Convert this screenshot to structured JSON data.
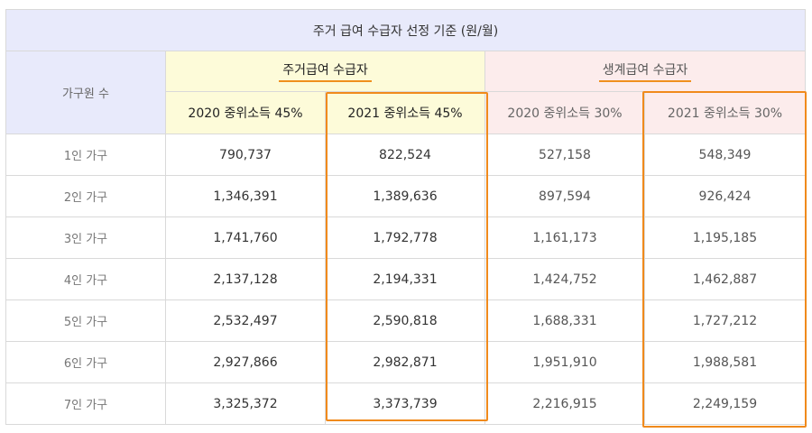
{
  "table": {
    "title": "주거 급여 수급자 선정 기준 (원/월)",
    "row_header": "가구원 수",
    "groups": [
      {
        "label": "주거급여 수급자",
        "subheaders": [
          "2020 중위소득 45%",
          "2021 중위소득 45%"
        ]
      },
      {
        "label": "생계급여 수급자",
        "subheaders": [
          "2020 중위소득 30%",
          "2021 중위소득 30%"
        ]
      }
    ],
    "rows": [
      {
        "label": "1인 가구",
        "values": [
          "790,737",
          "822,524",
          "527,158",
          "548,349"
        ]
      },
      {
        "label": "2인 가구",
        "values": [
          "1,346,391",
          "1,389,636",
          "897,594",
          "926,424"
        ]
      },
      {
        "label": "3인 가구",
        "values": [
          "1,741,760",
          "1,792,778",
          "1,161,173",
          "1,195,185"
        ]
      },
      {
        "label": "4인 가구",
        "values": [
          "2,137,128",
          "2,194,331",
          "1,424,752",
          "1,462,887"
        ]
      },
      {
        "label": "5인 가구",
        "values": [
          "2,532,497",
          "2,590,818",
          "1,688,331",
          "1,727,212"
        ]
      },
      {
        "label": "6인 가구",
        "values": [
          "2,927,866",
          "2,982,871",
          "1,951,910",
          "1,988,581"
        ]
      },
      {
        "label": "7인 가구",
        "values": [
          "3,325,372",
          "3,373,739",
          "2,216,915",
          "2,249,159"
        ]
      }
    ]
  },
  "colors": {
    "title_bg": "#e8eafb",
    "group1_bg": "#fdfbd9",
    "group2_bg": "#fcecec",
    "highlight": "#f08a1c"
  }
}
